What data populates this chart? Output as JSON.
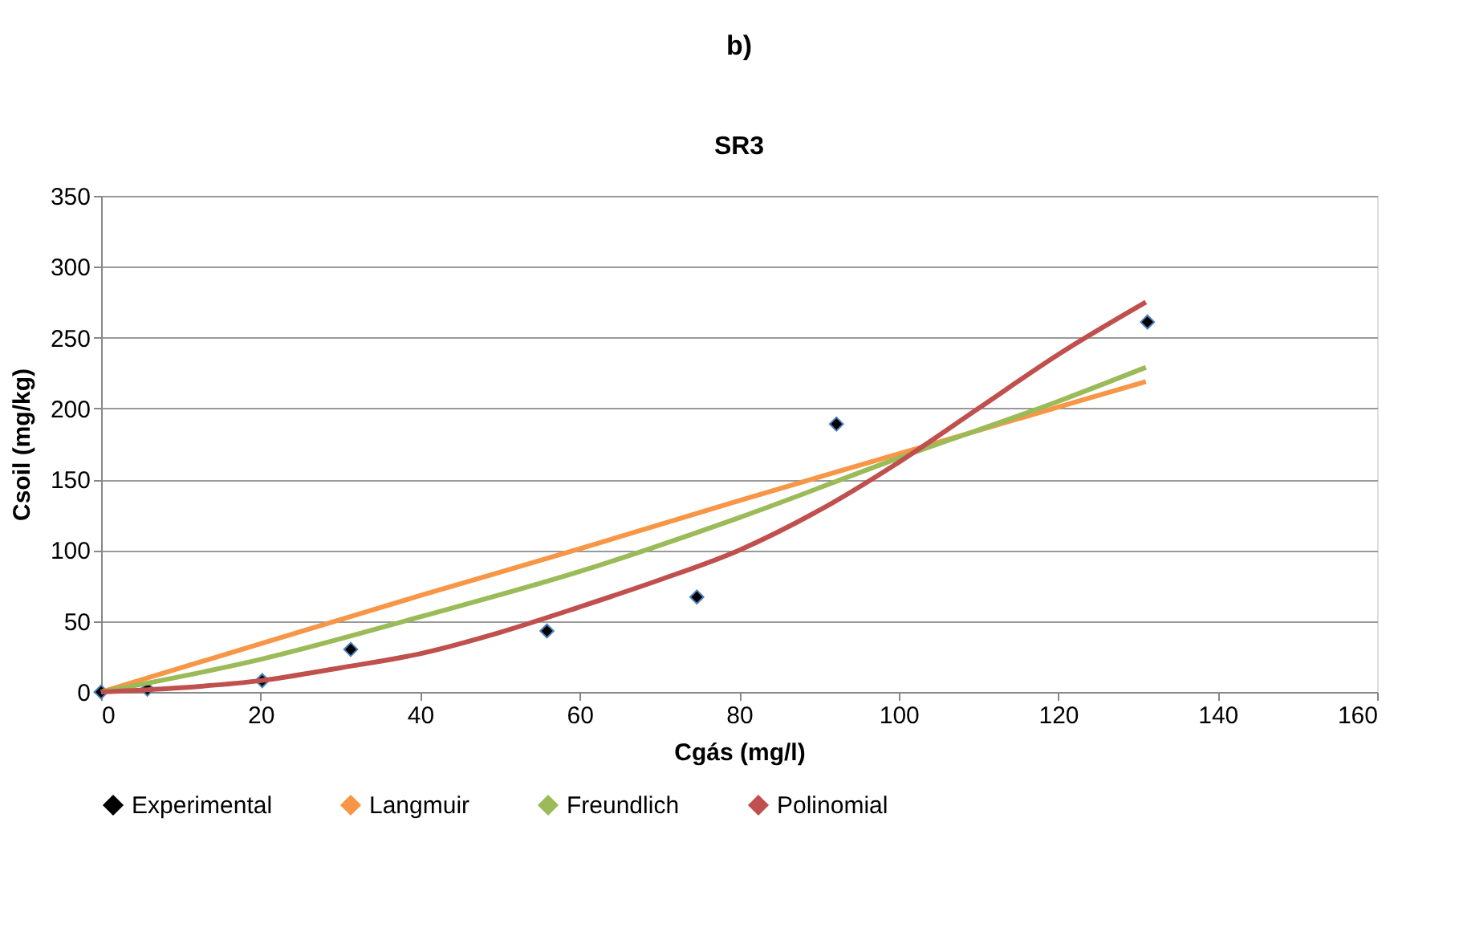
{
  "chart_data": {
    "type": "scatter",
    "title": "b)",
    "subtitle": "SR3",
    "xlabel": "Cgás (mg/l)",
    "ylabel": "Csoil (mg/kg)",
    "xlim": [
      0,
      160
    ],
    "xticks": [
      0,
      20,
      40,
      60,
      80,
      100,
      120,
      140,
      160
    ],
    "ylim": [
      0,
      350
    ],
    "yticks": [
      0,
      50,
      100,
      150,
      200,
      250,
      300,
      350
    ],
    "grid": "y",
    "legend": "bottom",
    "series": [
      {
        "name": "Experimental",
        "type": "scatter",
        "marker": "diamond",
        "color": "#000000",
        "x": [
          0,
          5.8,
          20.2,
          31.3,
          55.9,
          74.7,
          92.2,
          131.2
        ],
        "values": [
          0,
          2,
          8,
          30,
          43,
          67,
          189,
          261
        ]
      },
      {
        "name": "Langmuir",
        "type": "line",
        "color": "#f79646",
        "x": [
          0,
          20,
          40,
          60,
          80,
          100,
          120,
          131
        ],
        "values": [
          0,
          34,
          68,
          101,
          135,
          168,
          201,
          219
        ]
      },
      {
        "name": "Freundlich",
        "type": "line",
        "color": "#9bbb59",
        "x": [
          0,
          20,
          40,
          60,
          80,
          100,
          120,
          131
        ],
        "values": [
          0,
          23,
          53,
          85,
          123,
          165,
          205,
          229
        ]
      },
      {
        "name": "Polinomial",
        "type": "line",
        "color": "#c0504d",
        "x": [
          0,
          10,
          20,
          30,
          40,
          50,
          60,
          70,
          80,
          90,
          100,
          110,
          120,
          131
        ],
        "values": [
          0,
          3,
          8,
          17,
          27,
          42,
          60,
          79,
          100,
          128,
          162,
          200,
          238,
          275
        ]
      }
    ]
  }
}
